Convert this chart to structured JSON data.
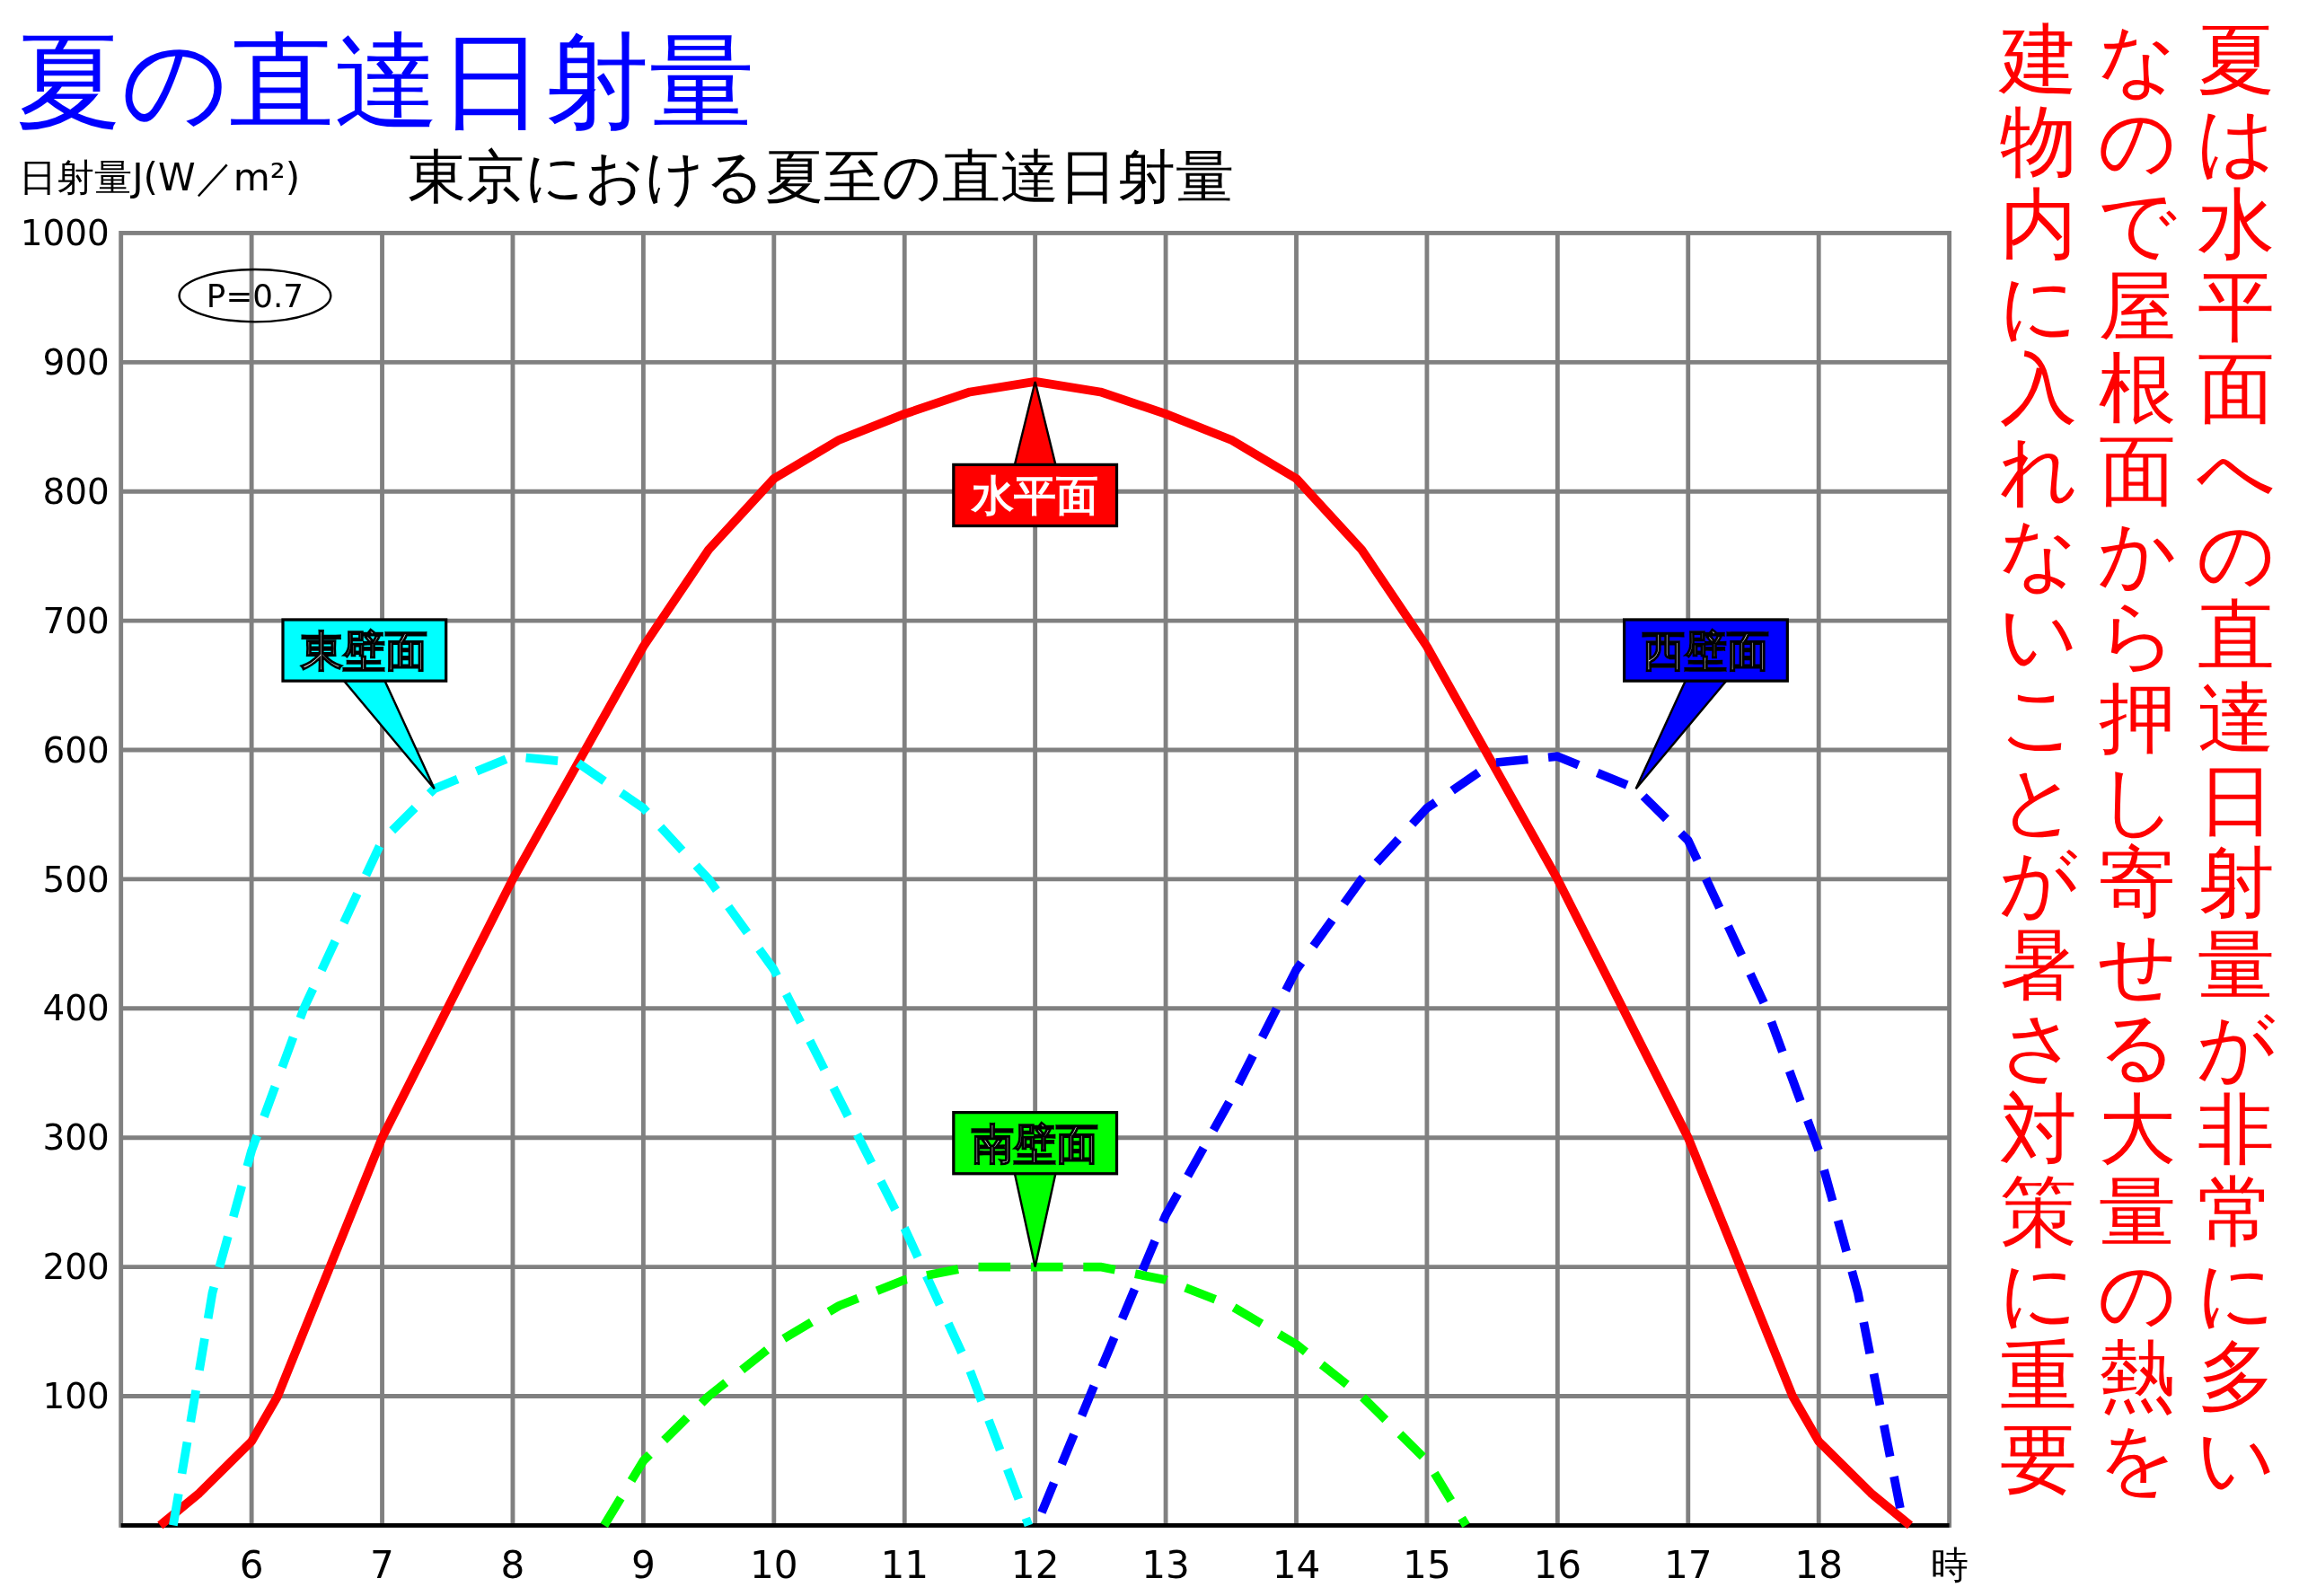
{
  "chart_data": {
    "type": "line",
    "title": "夏の直達日射量",
    "subtitle": "東京における夏至の直達日射量",
    "ylabel": "日射量J(W／m²)",
    "annotations": [
      "P=0.7",
      "夏は水平面への直達日射量が非常に多い",
      "なので屋根面から押し寄せる大量の熱を",
      "建物内に入れないことが暑さ対策に重要"
    ],
    "xlim": [
      5,
      19
    ],
    "ylim": [
      0,
      1000
    ],
    "xticks": [
      6,
      7,
      8,
      9,
      10,
      11,
      12,
      13,
      14,
      15,
      16,
      17,
      18,
      {
        "value": 19,
        "label": "時"
      }
    ],
    "yticks": [
      {
        "value": 0,
        "label": null
      },
      100,
      200,
      300,
      400,
      500,
      600,
      700,
      800,
      900,
      1000
    ],
    "grid": true,
    "legend": "top",
    "marker": "none",
    "series": [
      {
        "name": "水平面",
        "color": "#ff0000",
        "line_style": "solid",
        "x": [
          5.3,
          5.6,
          6,
          6.2,
          6.6,
          7,
          7.5,
          8,
          8.5,
          9,
          9.5,
          10,
          10.5,
          11,
          11.5,
          12,
          12.5,
          13,
          13.5,
          14,
          14.5,
          15,
          15.5,
          16,
          16.5,
          17,
          17.4,
          17.8,
          18,
          18.4,
          18.7
        ],
        "values": [
          0,
          25,
          65,
          100,
          200,
          300,
          400,
          500,
          590,
          680,
          755,
          810,
          840,
          860,
          877,
          885,
          877,
          860,
          840,
          810,
          755,
          680,
          590,
          500,
          400,
          300,
          200,
          100,
          65,
          25,
          0
        ]
      },
      {
        "name": "東壁面",
        "color": "#00ffff",
        "line_style": "dashed",
        "x": [
          5.4,
          5.7,
          6,
          6.4,
          7,
          7.4,
          8,
          8.5,
          9,
          9.5,
          10,
          10.5,
          11,
          11.5,
          11.95
        ],
        "values": [
          0,
          180,
          290,
          400,
          530,
          570,
          595,
          590,
          555,
          500,
          430,
          330,
          230,
          120,
          0
        ]
      },
      {
        "name": "西壁面",
        "color": "#0000ff",
        "line_style": "dashed",
        "x": [
          12.05,
          12.5,
          13,
          13.5,
          14,
          14.5,
          15,
          15.5,
          16,
          16.6,
          17,
          17.6,
          18,
          18.3,
          18.65
        ],
        "values": [
          10,
          120,
          240,
          330,
          430,
          500,
          555,
          590,
          595,
          570,
          530,
          400,
          290,
          180,
          0
        ]
      },
      {
        "name": "南壁面",
        "color": "#00ff00",
        "line_style": "dashed",
        "x": [
          8.7,
          9,
          9.5,
          10,
          10.5,
          11,
          11.5,
          12,
          12.5,
          13,
          13.5,
          14,
          14.5,
          15,
          15.3
        ],
        "values": [
          0,
          50,
          100,
          140,
          170,
          190,
          200,
          200,
          200,
          190,
          170,
          140,
          100,
          50,
          0
        ]
      }
    ]
  }
}
